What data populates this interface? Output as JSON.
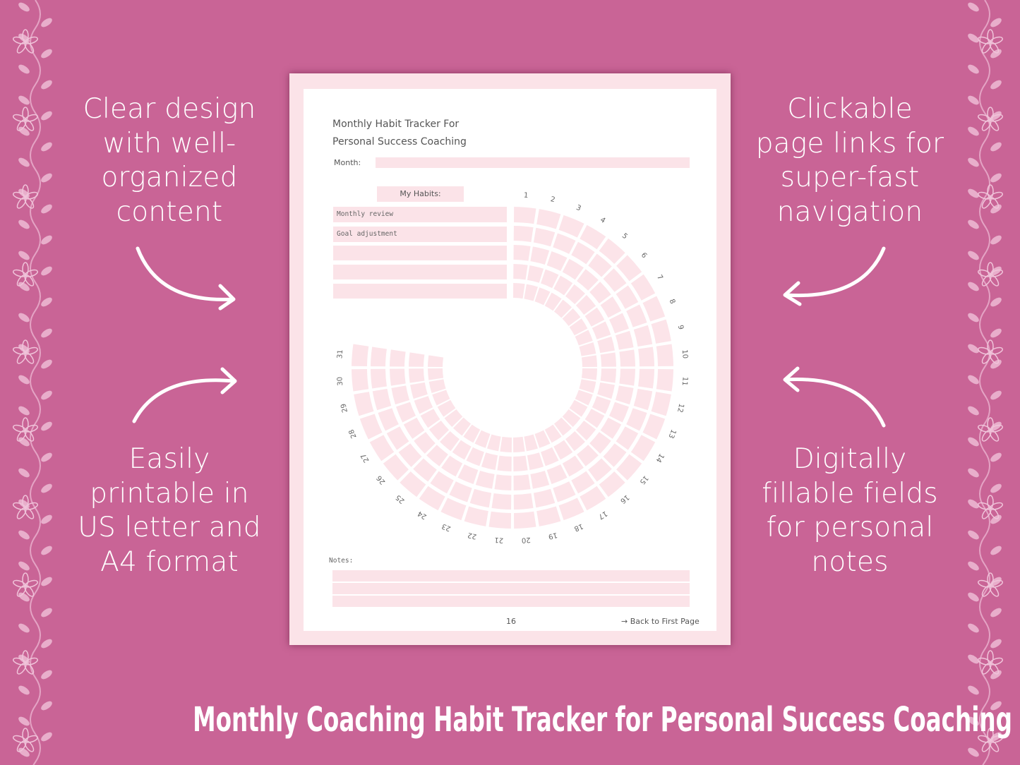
{
  "colors": {
    "background": "#c96496",
    "page_border": "#fbe3e8",
    "cell": "#fce4e9",
    "text": "#555555",
    "white": "#ffffff"
  },
  "features": {
    "top_left": [
      "Clear design",
      "with well-",
      "organized",
      "content"
    ],
    "bottom_left": [
      "Easily",
      "printable in",
      "US letter and",
      "A4 format"
    ],
    "top_right": [
      "Clickable",
      "page links for",
      "super-fast",
      "navigation"
    ],
    "bottom_right": [
      "Digitally",
      "fillable fields",
      "for personal",
      "notes"
    ]
  },
  "document": {
    "title_line1": "Monthly Habit Tracker For",
    "title_line2": "Personal Success Coaching",
    "month_label": "Month:",
    "month_value": "",
    "habits_header": "My Habits:",
    "habits": [
      "Monthly review",
      "Goal adjustment",
      "",
      "",
      ""
    ],
    "days": 31,
    "notes_label": "Notes:",
    "page_number": "16",
    "back_link": "→ Back to First Page"
  },
  "footer_title": "Monthly Coaching Habit Tracker for Personal Success Coaching",
  "icons": [
    "floral-vine-icon",
    "curved-arrow-icon"
  ]
}
